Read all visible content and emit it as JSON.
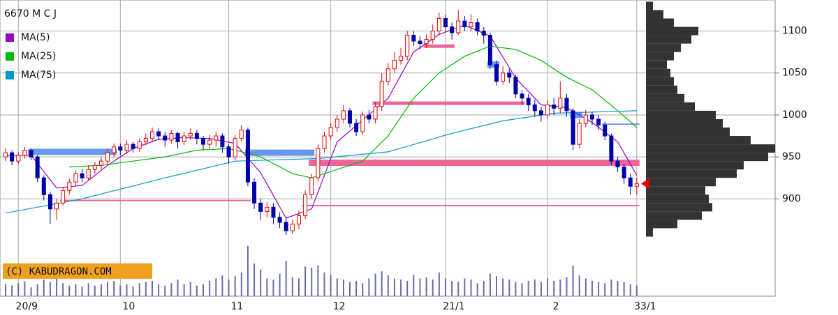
{
  "chart_data": {
    "type": "candlestick",
    "title": "6670 M C J",
    "watermark": "(C) KABUDRAGON.COM",
    "categories": [
      null,
      null,
      "20/9",
      null,
      null,
      null,
      null,
      null,
      null,
      null,
      null,
      null,
      null,
      null,
      null,
      null,
      null,
      null,
      "10",
      null,
      null,
      null,
      null,
      null,
      null,
      null,
      null,
      null,
      null,
      null,
      null,
      null,
      null,
      null,
      null,
      "11",
      null,
      null,
      null,
      null,
      null,
      null,
      null,
      null,
      null,
      null,
      null,
      null,
      null,
      null,
      null,
      "12",
      null,
      null,
      null,
      null,
      null,
      null,
      null,
      null,
      null,
      null,
      null,
      null,
      null,
      null,
      null,
      null,
      null,
      "21/1",
      null,
      null,
      null,
      null,
      null,
      null,
      null,
      null,
      null,
      null,
      null,
      null,
      null,
      null,
      null,
      "2",
      null,
      null,
      null,
      null,
      null,
      null,
      null,
      null,
      null,
      null,
      null,
      null,
      null,
      "33/1"
    ],
    "open": [
      950,
      955,
      945,
      952,
      958,
      950,
      925,
      905,
      888,
      895,
      910,
      920,
      930,
      925,
      935,
      940,
      945,
      955,
      962,
      958,
      965,
      960,
      968,
      972,
      980,
      975,
      970,
      978,
      968,
      975,
      978,
      972,
      965,
      970,
      975,
      962,
      950,
      972,
      982,
      920,
      895,
      885,
      890,
      878,
      872,
      862,
      870,
      880,
      905,
      925,
      960,
      975,
      985,
      995,
      1005,
      990,
      980,
      1000,
      995,
      1010,
      1040,
      1055,
      1065,
      1070,
      1095,
      1088,
      1085,
      1090,
      1100,
      1115,
      1105,
      1098,
      1112,
      1105,
      1110,
      1100,
      1095,
      1060,
      1040,
      1050,
      1045,
      1025,
      1020,
      1012,
      1005,
      1000,
      1012,
      1008,
      1020,
      1005,
      965,
      990,
      1000,
      995,
      988,
      975,
      945,
      938,
      925,
      915
    ],
    "high": [
      960,
      958,
      956,
      962,
      960,
      952,
      928,
      908,
      900,
      914,
      924,
      934,
      936,
      940,
      944,
      950,
      960,
      966,
      966,
      970,
      968,
      972,
      978,
      985,
      984,
      980,
      982,
      980,
      980,
      984,
      982,
      975,
      976,
      980,
      978,
      965,
      976,
      988,
      985,
      925,
      900,
      896,
      895,
      884,
      878,
      875,
      886,
      910,
      930,
      965,
      980,
      990,
      1000,
      1012,
      1008,
      995,
      1004,
      1006,
      1015,
      1050,
      1062,
      1075,
      1080,
      1100,
      1100,
      1094,
      1096,
      1108,
      1122,
      1120,
      1110,
      1125,
      1118,
      1120,
      1115,
      1105,
      1098,
      1065,
      1058,
      1055,
      1048,
      1030,
      1025,
      1018,
      1010,
      1018,
      1020,
      1040,
      1025,
      1008,
      995,
      1006,
      1004,
      1000,
      992,
      978,
      950,
      942,
      930,
      925
    ],
    "low": [
      945,
      940,
      942,
      948,
      946,
      920,
      898,
      870,
      875,
      892,
      905,
      915,
      920,
      922,
      930,
      935,
      940,
      950,
      952,
      954,
      955,
      956,
      964,
      968,
      970,
      962,
      966,
      960,
      964,
      970,
      965,
      958,
      960,
      962,
      955,
      942,
      946,
      968,
      915,
      888,
      875,
      878,
      870,
      865,
      857,
      858,
      864,
      876,
      900,
      920,
      955,
      970,
      980,
      990,
      985,
      975,
      976,
      990,
      990,
      1005,
      1035,
      1050,
      1060,
      1065,
      1082,
      1078,
      1080,
      1085,
      1095,
      1100,
      1090,
      1095,
      1100,
      1100,
      1095,
      1085,
      1055,
      1035,
      1036,
      1038,
      1020,
      1012,
      1005,
      998,
      992,
      995,
      1000,
      1002,
      998,
      958,
      960,
      985,
      988,
      982,
      970,
      940,
      932,
      918,
      905,
      905
    ],
    "close": [
      955,
      945,
      952,
      958,
      950,
      925,
      905,
      888,
      895,
      910,
      920,
      930,
      925,
      935,
      940,
      945,
      955,
      962,
      958,
      965,
      960,
      968,
      972,
      980,
      975,
      970,
      978,
      968,
      975,
      978,
      972,
      965,
      970,
      975,
      962,
      950,
      972,
      982,
      920,
      895,
      885,
      890,
      878,
      872,
      862,
      870,
      880,
      905,
      925,
      960,
      975,
      985,
      995,
      1005,
      990,
      980,
      1000,
      995,
      1010,
      1040,
      1055,
      1065,
      1070,
      1095,
      1088,
      1085,
      1090,
      1100,
      1115,
      1105,
      1098,
      1112,
      1105,
      1110,
      1100,
      1095,
      1060,
      1040,
      1050,
      1045,
      1025,
      1020,
      1012,
      1005,
      1000,
      1012,
      1008,
      1020,
      1005,
      965,
      990,
      1000,
      995,
      988,
      975,
      945,
      938,
      925,
      915,
      918
    ],
    "volume": [
      20,
      18,
      22,
      25,
      15,
      20,
      28,
      24,
      30,
      22,
      18,
      20,
      16,
      22,
      18,
      20,
      24,
      26,
      18,
      20,
      16,
      22,
      24,
      26,
      20,
      18,
      22,
      28,
      20,
      24,
      18,
      20,
      26,
      30,
      35,
      28,
      34,
      40,
      85,
      55,
      45,
      30,
      28,
      38,
      60,
      32,
      30,
      50,
      48,
      52,
      40,
      36,
      30,
      28,
      24,
      26,
      22,
      30,
      38,
      42,
      35,
      30,
      28,
      26,
      36,
      30,
      32,
      28,
      40,
      30,
      26,
      24,
      30,
      28,
      22,
      26,
      38,
      34,
      30,
      28,
      24,
      22,
      26,
      28,
      24,
      30,
      26,
      28,
      32,
      52,
      35,
      30,
      26,
      24,
      22,
      28,
      26,
      24,
      20,
      18
    ],
    "up_color": "#e60000",
    "down_color": "#0000aa",
    "volume_color": "#6a6aaa",
    "series": [
      {
        "name": "MA(5)",
        "color": "#9900cc",
        "x": [
          0,
          4,
          8,
          12,
          16,
          20,
          24,
          28,
          32,
          36,
          40,
          44,
          48,
          52,
          56,
          60,
          64,
          68,
          72,
          76,
          80,
          84,
          88,
          92,
          96,
          99
        ],
        "values": [
          952,
          952,
          913,
          916,
          940,
          960,
          971,
          973,
          972,
          966,
          931,
          877,
          888,
          968,
          994,
          1020,
          1075,
          1096,
          1107,
          1094,
          1044,
          1012,
          1009,
          991,
          968,
          928
        ]
      },
      {
        "name": "MA(25)",
        "color": "#00bb00",
        "x": [
          10,
          15,
          20,
          25,
          30,
          35,
          40,
          45,
          48,
          52,
          56,
          60,
          64,
          68,
          72,
          76,
          80,
          84,
          88,
          92,
          96,
          99
        ],
        "values": [
          938,
          940,
          945,
          950,
          958,
          960,
          950,
          930,
          925,
          935,
          945,
          975,
          1020,
          1050,
          1070,
          1082,
          1078,
          1065,
          1045,
          1030,
          1005,
          985
        ]
      },
      {
        "name": "MA(75)",
        "color": "#0099cc",
        "x": [
          0,
          12,
          25,
          36,
          49,
          60,
          70,
          78,
          86,
          99
        ],
        "values": [
          883,
          900,
          925,
          945,
          948,
          956,
          978,
          993,
          1002,
          1005
        ]
      }
    ],
    "levels": [
      {
        "value": 956,
        "from": 4,
        "to": 17,
        "color": "#6699ee",
        "style": "thick"
      },
      {
        "value": 955,
        "from": 38,
        "to": 48,
        "color": "#6699ee",
        "style": "thick"
      },
      {
        "value": 898,
        "from": 9,
        "to": 38,
        "color": "#ee6699",
        "style": "thin"
      },
      {
        "value": 943,
        "from": 48,
        "to": 99,
        "color": "#ee6699",
        "style": "thick"
      },
      {
        "value": 892,
        "from": 47,
        "to": 99,
        "color": "#ee6699",
        "style": "thin"
      },
      {
        "value": 1014,
        "from": 58,
        "to": 81,
        "color": "#ee6699",
        "style": "medium"
      },
      {
        "value": 1082,
        "from": 66,
        "to": 70,
        "color": "#ee6699",
        "style": "medium"
      },
      {
        "value": 1060,
        "from": 76,
        "to": 77,
        "color": "#6699ee",
        "style": "thick"
      },
      {
        "value": 1000,
        "from": 89,
        "to": 90,
        "color": "#6699ee",
        "style": "thick"
      },
      {
        "value": 989,
        "from": 94,
        "to": 99,
        "color": "#6699ee",
        "style": "thin"
      }
    ],
    "volume_profile": {
      "color": "#333333",
      "bins": [
        855,
        865,
        875,
        885,
        895,
        905,
        915,
        925,
        935,
        945,
        955,
        965,
        975,
        985,
        995,
        1005,
        1015,
        1025,
        1035,
        1045,
        1055,
        1065,
        1075,
        1085,
        1095,
        1105,
        1115,
        1125,
        1135
      ],
      "values": [
        10,
        45,
        80,
        95,
        90,
        85,
        100,
        130,
        140,
        175,
        185,
        150,
        120,
        110,
        100,
        70,
        55,
        45,
        40,
        35,
        30,
        40,
        50,
        65,
        75,
        40,
        25,
        10
      ]
    },
    "ylim": [
      784,
      1137
    ],
    "yticks": [
      900,
      950,
      1000,
      1050,
      1100
    ],
    "grid": true
  }
}
